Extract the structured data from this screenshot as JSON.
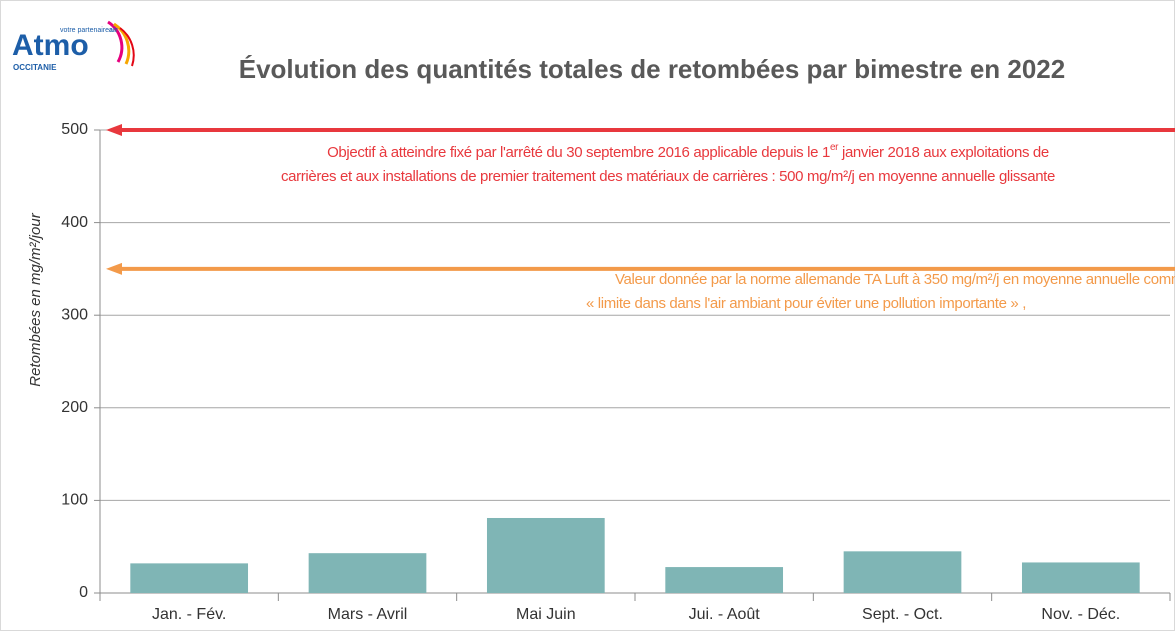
{
  "logo": {
    "name": "Atmo",
    "tagline": "votre partenaire",
    "tagline_bold": "air",
    "region": "OCCITANIE"
  },
  "chart_data": {
    "type": "bar",
    "title": "Évolution des quantités totales de retombées par bimestre en 2022",
    "y_label": "Retombées en mg/m²/jour",
    "categories": [
      "Jan. - Fév.",
      "Mars - Avril",
      "Mai  Juin",
      "Jui. - Août",
      "Sept. - Oct.",
      "Nov. - Déc."
    ],
    "values": [
      32,
      43,
      81,
      28,
      45,
      33
    ],
    "color": "#7fb5b5",
    "ylim": [
      0,
      500
    ],
    "yticks": [
      0,
      100,
      200,
      300,
      400,
      500
    ],
    "grid": true,
    "annotations": [
      {
        "value": 500,
        "color": "#e8383d",
        "lines": [
          {
            "before": "Objectif à atteindre fixé  par l'arrêté du 30 septembre 2016 applicable depuis le 1",
            "sup": "er",
            "after": " janvier 2018 aux exploitations de"
          },
          {
            "before": "carrières et aux installations  de premier traitement des matériaux de carrières : 500 mg/m²/j en moyenne annuelle glissante"
          }
        ]
      },
      {
        "value": 350,
        "color": "#f39a4a",
        "lines": [
          {
            "before": "Valeur donnée par la norme allemande TA Luft à 350 mg/m²/j en moyenne annuelle comme"
          },
          {
            "before": "« limite  dans dans l'air ambiant pour éviter  une pollution importante » ,"
          }
        ]
      }
    ]
  }
}
